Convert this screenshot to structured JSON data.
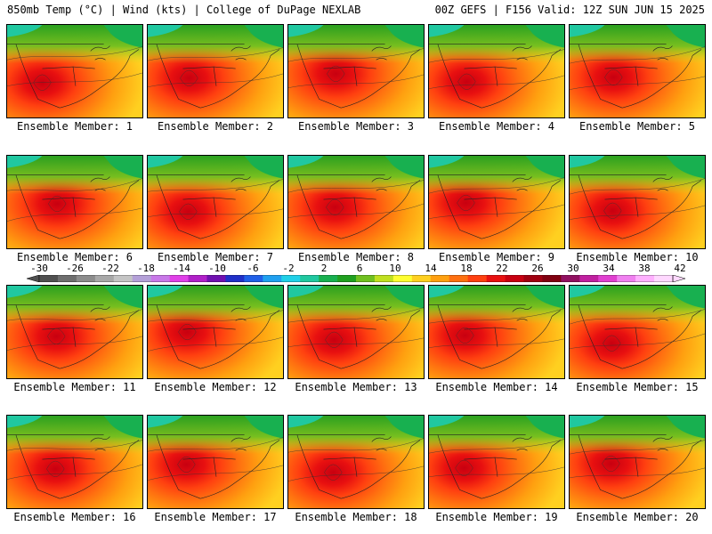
{
  "header": {
    "left": "850mb Temp (°C) | Wind (kts) | College of DuPage NEXLAB",
    "right": "00Z GEFS | F156 Valid: 12Z SUN JUN 15 2025"
  },
  "members": [
    {
      "label": "Ensemble Member: 1"
    },
    {
      "label": "Ensemble Member: 2"
    },
    {
      "label": "Ensemble Member: 3"
    },
    {
      "label": "Ensemble Member: 4"
    },
    {
      "label": "Ensemble Member: 5"
    },
    {
      "label": "Ensemble Member: 6"
    },
    {
      "label": "Ensemble Member: 7"
    },
    {
      "label": "Ensemble Member: 8"
    },
    {
      "label": "Ensemble Member: 9"
    },
    {
      "label": "Ensemble Member: 10"
    },
    {
      "label": "Ensemble Member: 11"
    },
    {
      "label": "Ensemble Member: 12"
    },
    {
      "label": "Ensemble Member: 13"
    },
    {
      "label": "Ensemble Member: 14"
    },
    {
      "label": "Ensemble Member: 15"
    },
    {
      "label": "Ensemble Member: 16"
    },
    {
      "label": "Ensemble Member: 17"
    },
    {
      "label": "Ensemble Member: 18"
    },
    {
      "label": "Ensemble Member: 19"
    },
    {
      "label": "Ensemble Member: 20"
    }
  ],
  "colorbar": {
    "ticks": [
      "-30",
      "-26",
      "-22",
      "-18",
      "-14",
      "-10",
      "-6",
      "-2",
      "2",
      "6",
      "10",
      "14",
      "18",
      "22",
      "26",
      "30",
      "34",
      "38",
      "42"
    ],
    "colors": [
      "#505050",
      "#6e6e6e",
      "#8c8c8c",
      "#a8a8a8",
      "#c4c4c4",
      "#b4a0d8",
      "#c878e8",
      "#e040e8",
      "#b020c8",
      "#7010b0",
      "#2030c8",
      "#2060e8",
      "#20a0f0",
      "#20d0e8",
      "#20c8a0",
      "#18b050",
      "#20a020",
      "#70c020",
      "#c0e020",
      "#ffff30",
      "#ffd020",
      "#ffa010",
      "#ff7010",
      "#ff4010",
      "#e81010",
      "#c80010",
      "#a00010",
      "#800010",
      "#901060",
      "#c020a0",
      "#e040d0",
      "#f080f0",
      "#ffb0ff",
      "#ffd8ff"
    ]
  }
}
